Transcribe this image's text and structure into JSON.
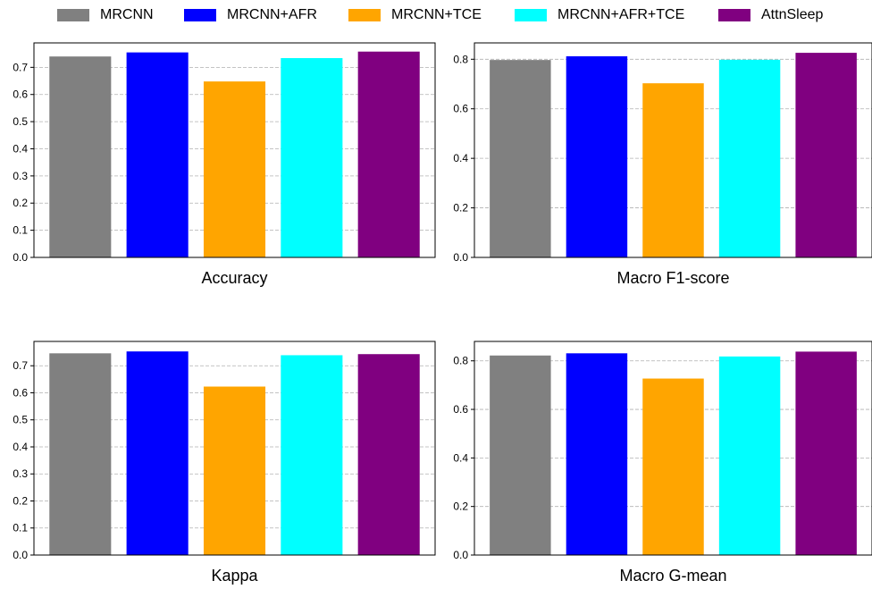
{
  "legend": [
    {
      "name": "MRCNN",
      "color": "#808080"
    },
    {
      "name": "MRCNN+AFR",
      "color": "#0000ff"
    },
    {
      "name": "MRCNN+TCE",
      "color": "#ffa500"
    },
    {
      "name": "MRCNN+AFR+TCE",
      "color": "#00ffff"
    },
    {
      "name": "AttnSleep",
      "color": "#800080"
    }
  ],
  "chart_data": [
    {
      "type": "bar",
      "title": "Accuracy",
      "categories": [
        "MRCNN",
        "MRCNN+AFR",
        "MRCNN+TCE",
        "MRCNN+AFR+TCE",
        "AttnSleep"
      ],
      "values": [
        0.74,
        0.755,
        0.648,
        0.734,
        0.758
      ],
      "ylim": [
        0,
        0.79
      ],
      "yticks": [
        "0.0",
        "0.1",
        "0.2",
        "0.3",
        "0.4",
        "0.5",
        "0.6",
        "0.7"
      ],
      "grid": "y, dashed"
    },
    {
      "type": "bar",
      "title": "Macro F1-score",
      "categories": [
        "MRCNN",
        "MRCNN+AFR",
        "MRCNN+TCE",
        "MRCNN+AFR+TCE",
        "AttnSleep"
      ],
      "values": [
        0.797,
        0.812,
        0.703,
        0.798,
        0.826
      ],
      "ylim": [
        0,
        0.866
      ],
      "yticks": [
        "0.0",
        "0.2",
        "0.4",
        "0.6",
        "0.8"
      ],
      "grid": "y, dashed"
    },
    {
      "type": "bar",
      "title": "Kappa",
      "categories": [
        "MRCNN",
        "MRCNN+AFR",
        "MRCNN+TCE",
        "MRCNN+AFR+TCE",
        "AttnSleep"
      ],
      "values": [
        0.746,
        0.753,
        0.623,
        0.739,
        0.743
      ],
      "ylim": [
        0,
        0.79
      ],
      "yticks": [
        "0.0",
        "0.1",
        "0.2",
        "0.3",
        "0.4",
        "0.5",
        "0.6",
        "0.7"
      ],
      "grid": "y, dashed"
    },
    {
      "type": "bar",
      "title": "Macro G-mean",
      "categories": [
        "MRCNN",
        "MRCNN+AFR",
        "MRCNN+TCE",
        "MRCNN+AFR+TCE",
        "AttnSleep"
      ],
      "values": [
        0.822,
        0.831,
        0.727,
        0.818,
        0.838
      ],
      "ylim": [
        0,
        0.88
      ],
      "yticks": [
        "0.0",
        "0.2",
        "0.4",
        "0.6",
        "0.8"
      ],
      "grid": "y, dashed"
    }
  ]
}
